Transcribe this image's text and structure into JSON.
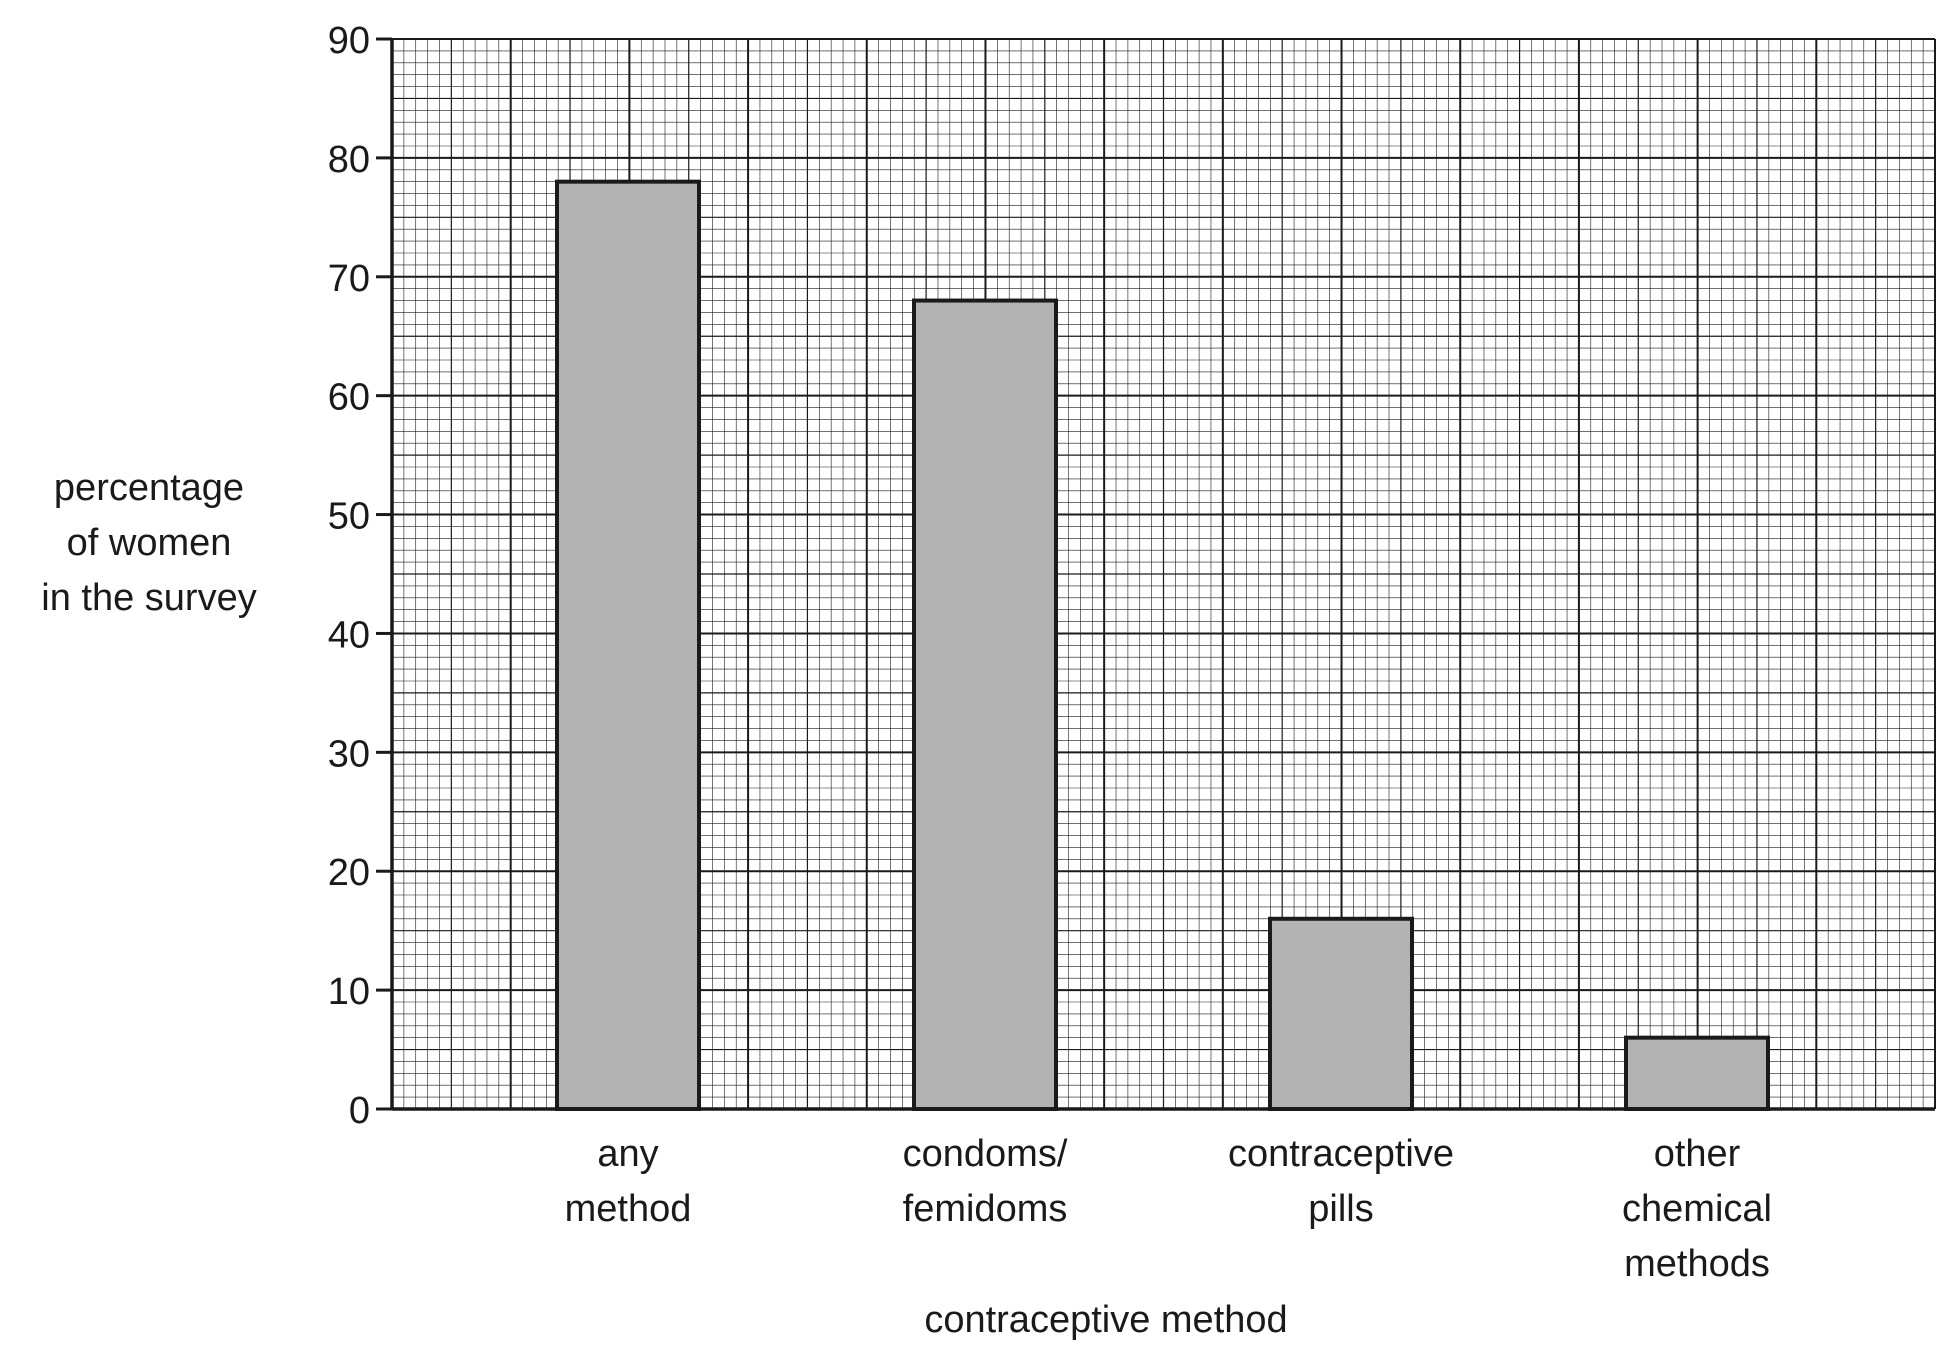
{
  "chart_data": {
    "type": "bar",
    "categories": [
      [
        "any",
        "method"
      ],
      [
        "condoms/",
        "femidoms"
      ],
      [
        "contraceptive",
        "pills"
      ],
      [
        "other",
        "chemical",
        "methods"
      ]
    ],
    "values": [
      78,
      68,
      16,
      6
    ],
    "ylabel": [
      "percentage",
      "of women",
      "in the survey"
    ],
    "xlabel": "contraceptive method",
    "ylim": [
      0,
      90
    ],
    "yticks": [
      "0",
      "10",
      "20",
      "30",
      "40",
      "50",
      "60",
      "70",
      "80",
      "90"
    ],
    "grid": "graph-paper",
    "colors": {
      "bar": "#b3b3b3",
      "outline": "#1a1a1a",
      "grid": "#1a1a1a"
    }
  }
}
